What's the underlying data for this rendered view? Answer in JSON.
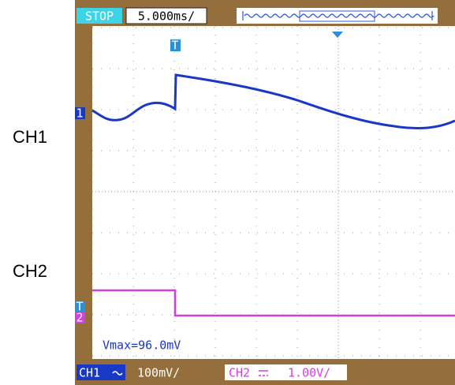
{
  "side_labels": [
    "CH1",
    "CH2"
  ],
  "top_bar": {
    "status": "STOP",
    "timebase": "5.000ms/"
  },
  "markers": {
    "trigger": "T",
    "ch1": "1",
    "ch2_trigger": "T",
    "ch2": "2"
  },
  "measurement": "Vmax=96.0mV",
  "bottom_bar": {
    "ch1": {
      "label": "CH1",
      "scale": "100mV/"
    },
    "ch2": {
      "label": "CH2",
      "scale": "1.00V/"
    }
  }
}
